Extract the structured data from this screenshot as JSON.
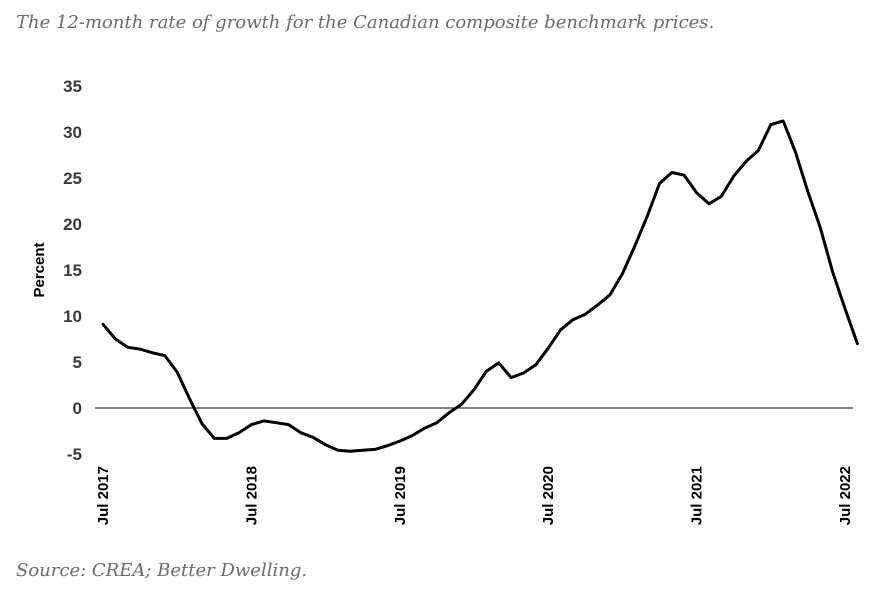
{
  "caption": "The 12-month rate of growth for the Canadian composite benchmark prices.",
  "source": "Source: CREA; Better Dwelling.",
  "chart_data": {
    "type": "line",
    "title": "",
    "xlabel": "",
    "ylabel": "Percent",
    "ylim": [
      -5,
      35
    ],
    "yticks": [
      -5,
      0,
      5,
      10,
      15,
      20,
      25,
      30,
      35
    ],
    "xtick_labels": [
      "Jul 2017",
      "Jul 2018",
      "Jul 2019",
      "Jul 2020",
      "Jul 2021",
      "Jul 2022"
    ],
    "x_range": [
      "Jul 2017",
      "Jul 2022"
    ],
    "grid": false,
    "zero_line": true,
    "series": [
      {
        "color": "#000000",
        "x": [
          "Jul 2017",
          "Aug 2017",
          "Sep 2017",
          "Oct 2017",
          "Nov 2017",
          "Dec 2017",
          "Jan 2018",
          "Feb 2018",
          "Mar 2018",
          "Apr 2018",
          "May 2018",
          "Jun 2018",
          "Jul 2018",
          "Aug 2018",
          "Sep 2018",
          "Oct 2018",
          "Nov 2018",
          "Dec 2018",
          "Jan 2019",
          "Feb 2019",
          "Mar 2019",
          "Apr 2019",
          "May 2019",
          "Jun 2019",
          "Jul 2019",
          "Aug 2019",
          "Sep 2019",
          "Oct 2019",
          "Nov 2019",
          "Dec 2019",
          "Jan 2020",
          "Feb 2020",
          "Mar 2020",
          "Apr 2020",
          "May 2020",
          "Jun 2020",
          "Jul 2020",
          "Aug 2020",
          "Sep 2020",
          "Oct 2020",
          "Nov 2020",
          "Dec 2020",
          "Jan 2021",
          "Feb 2021",
          "Mar 2021",
          "Apr 2021",
          "May 2021",
          "Jun 2021",
          "Jul 2021",
          "Aug 2021",
          "Sep 2021",
          "Oct 2021",
          "Nov 2021",
          "Dec 2021",
          "Jan 2022",
          "Feb 2022",
          "Mar 2022",
          "Apr 2022",
          "May 2022",
          "Jun 2022",
          "Jul 2022",
          "Aug 2022"
        ],
        "values": [
          9.1,
          7.5,
          6.6,
          6.4,
          6.0,
          5.7,
          3.9,
          1.0,
          -1.7,
          -3.3,
          -3.3,
          -2.7,
          -1.8,
          -1.4,
          -1.6,
          -1.8,
          -2.7,
          -3.2,
          -4.0,
          -4.6,
          -4.7,
          -4.6,
          -4.5,
          -4.1,
          -3.6,
          -3.0,
          -2.2,
          -1.6,
          -0.5,
          0.4,
          2.0,
          4.0,
          4.9,
          3.3,
          3.8,
          4.7,
          6.5,
          8.5,
          9.6,
          10.2,
          11.2,
          12.3,
          14.6,
          17.6,
          20.8,
          24.4,
          25.6,
          25.3,
          23.4,
          22.2,
          23.0,
          25.2,
          26.8,
          28.0,
          30.8,
          31.2,
          27.8,
          23.5,
          19.6,
          14.8,
          10.8,
          7.0
        ]
      }
    ]
  }
}
